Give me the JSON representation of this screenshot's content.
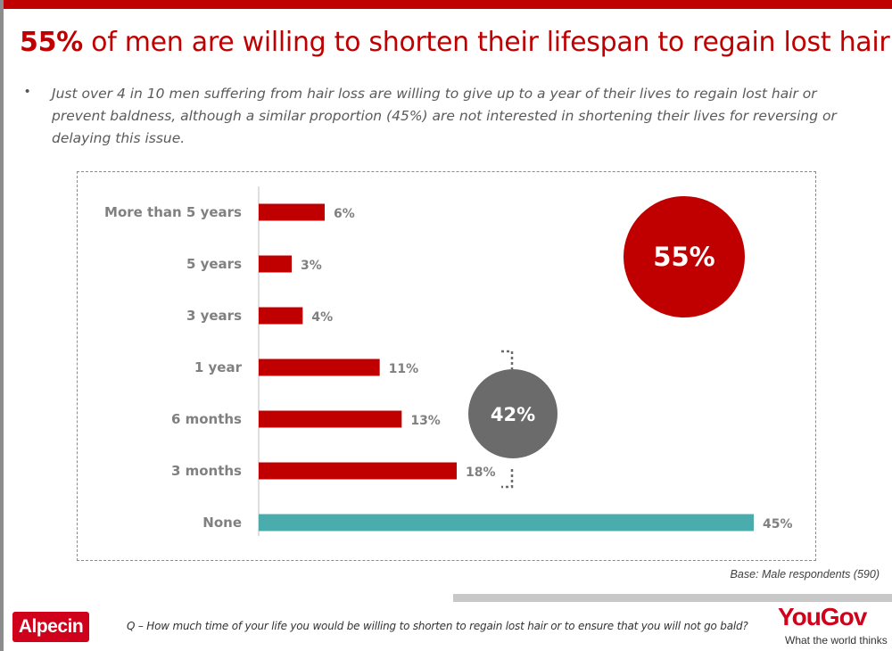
{
  "title": {
    "highlight": "55%",
    "rest": " of men are willing to shorten their lifespan to regain lost hair!"
  },
  "bullet": "Just over 4 in 10 men suffering from hair loss are willing to give up to a year of their lives to regain lost hair or prevent baldness, although a similar proportion (45%) are not interested in shortening their lives for reversing or delaying this issue.",
  "chart_data": {
    "type": "bar",
    "orientation": "horizontal",
    "categories": [
      "More than 5 years",
      "5 years",
      "3 years",
      "1 year",
      "6 months",
      "3 months",
      "None"
    ],
    "values": [
      6,
      3,
      4,
      11,
      13,
      18,
      45
    ],
    "value_labels": [
      "6%",
      "3%",
      "4%",
      "11%",
      "13%",
      "18%",
      "45%"
    ],
    "xlim": [
      0,
      45
    ],
    "colors": [
      "#c00000",
      "#c00000",
      "#c00000",
      "#c00000",
      "#c00000",
      "#c00000",
      "#4aacad"
    ],
    "grid": false,
    "annotations": [
      {
        "text": "55%",
        "shape": "circle",
        "color": "#c00000",
        "placement": "top-right"
      },
      {
        "text": "42%",
        "shape": "circle",
        "color": "#6b6b6b",
        "placement": "beside 1 year to 3 months bars",
        "bracket": true
      }
    ]
  },
  "base_note": "Base: Male respondents (590)",
  "question": "Q – How much time of your life you would be willing to shorten to regain lost hair or to ensure that you will not go bald?",
  "logos": {
    "left": "Alpecin",
    "right": "YouGov",
    "tagline": "What the world thinks"
  },
  "colors": {
    "brand_red": "#c00000",
    "none_bar": "#4aacad",
    "circle_gray": "#6b6b6b"
  }
}
